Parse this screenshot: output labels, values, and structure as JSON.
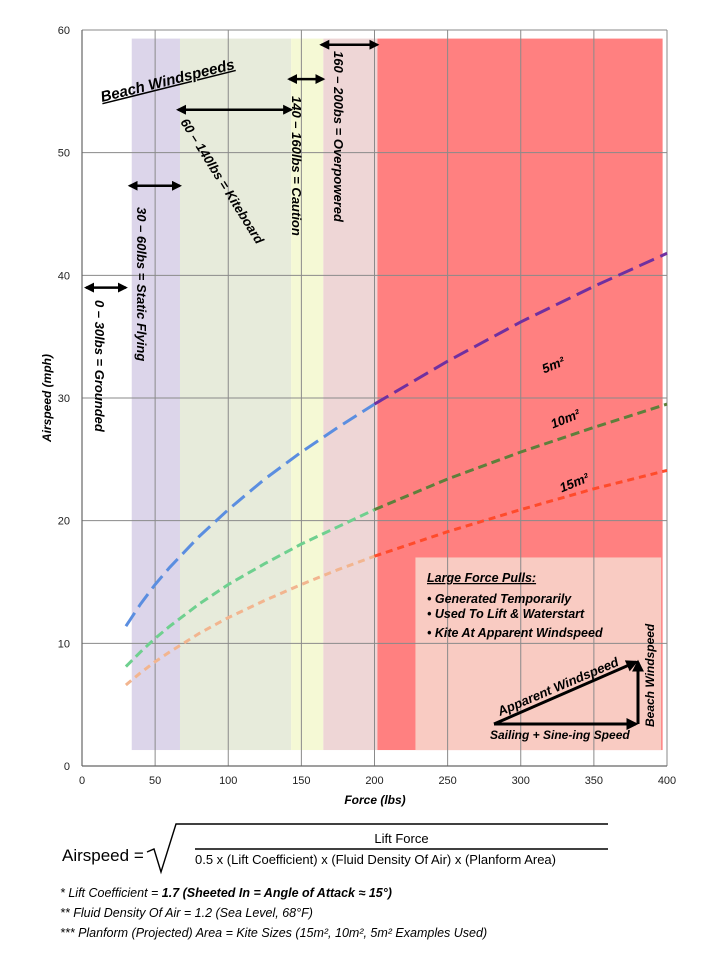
{
  "chart_data": {
    "type": "line",
    "title": "Beach Windspeeds",
    "xlabel": "Force (lbs)",
    "ylabel": "Airspeed (mph)",
    "xlim": [
      0,
      400
    ],
    "ylim": [
      0,
      60
    ],
    "xticks": [
      0,
      50,
      100,
      150,
      200,
      250,
      300,
      350,
      400
    ],
    "yticks": [
      0,
      10,
      20,
      30,
      40,
      50,
      60
    ],
    "grid": true,
    "x": [
      30,
      40,
      50,
      60,
      80,
      100,
      125,
      150,
      175,
      200,
      250,
      300,
      350,
      400
    ],
    "split_at": 200,
    "series": [
      {
        "name": "5m²",
        "values": [
          11.4,
          13.2,
          14.8,
          16.2,
          18.7,
          20.9,
          23.4,
          25.6,
          27.6,
          29.5,
          33.0,
          36.2,
          39.1,
          41.8
        ],
        "color_low": "#5b8ee0",
        "color_high": "#7030a0",
        "dash": "16 7",
        "label_at": [
          316,
          32
        ]
      },
      {
        "name": "10m²",
        "values": [
          8.1,
          9.3,
          10.4,
          11.4,
          13.2,
          14.8,
          16.5,
          18.1,
          19.5,
          20.9,
          23.4,
          25.6,
          27.6,
          29.5
        ],
        "color_low": "#6fd08f",
        "color_high": "#5f7f3b",
        "dash": "9 5",
        "label_at": [
          322,
          27.5
        ]
      },
      {
        "name": "15m²",
        "values": [
          6.6,
          7.6,
          8.5,
          9.3,
          10.8,
          12.1,
          13.5,
          14.8,
          16.0,
          17.1,
          19.1,
          20.9,
          22.6,
          24.1
        ],
        "color_low": "#f2b58f",
        "color_high": "#ff4b2b",
        "dash": "7 5",
        "label_at": [
          328,
          22.3
        ]
      }
    ],
    "zones": [
      {
        "label": "0 – 30lbs = Grounded",
        "from": 0,
        "to": 30,
        "color": null,
        "arrow_y": 39
      },
      {
        "label": "30 – 60lbs = Static Flying",
        "from": 34,
        "to": 67,
        "color": "#dcd5ea",
        "arrow_y": 47.3
      },
      {
        "label": "60 – 140lbs = Kiteboard",
        "from": 67,
        "to": 143,
        "color": "#e7ebdb",
        "arrow_y": 53.5
      },
      {
        "label": "140 – 160lbs = Caution",
        "from": 143,
        "to": 165,
        "color": "#f5f9d5",
        "arrow_y": 56
      },
      {
        "label": "160 – 200bs = Overpowered",
        "from": 165,
        "to": 202,
        "color": "#eed6d6",
        "arrow_y": 58.8
      },
      {
        "label": "",
        "from": 202,
        "to": 397,
        "color": "#ff8080",
        "arrow_y": null
      }
    ],
    "infobox": {
      "title": "Large Force Pulls:",
      "bullets": [
        "Generated Temporarily",
        "Used To Lift & Waterstart",
        "Kite At Apparent Windspeed"
      ],
      "apparent": "Apparent Windspeed",
      "beach": "Beach Windspeed",
      "sailing": "Sailing + Sine-ing Speed",
      "color": "#f9cbc2"
    }
  },
  "formula": {
    "lhs": "Airspeed =",
    "numerator": "Lift Force",
    "denominator": "0.5 x (Lift Coefficient) x (Fluid Density Of Air) x (Planform Area)"
  },
  "notes": {
    "n1_prefix": "* Lift Coefficient = ",
    "n1_bold": "1.7 (Sheeted In = Angle of Attack ≈ 15°)",
    "n2": "** Fluid Density Of Air = 1.2 (Sea Level, 68°F)",
    "n3": "*** Planform (Projected) Area = Kite Sizes (15m², 10m², 5m² Examples Used)"
  }
}
